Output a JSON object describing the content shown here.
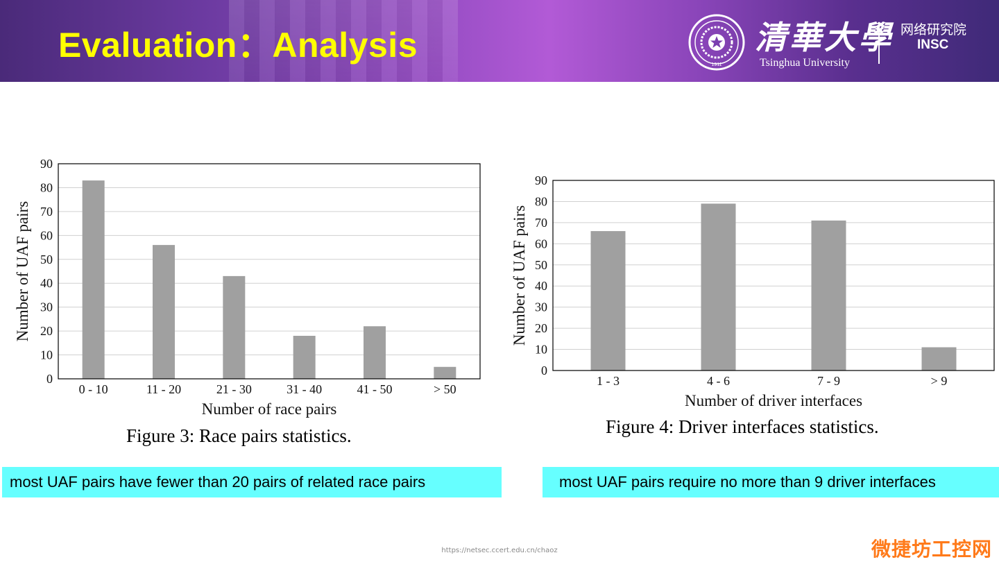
{
  "slide": {
    "title": "Evaluation：Analysis",
    "logo": {
      "university_cn": "清華大學",
      "university_en": "Tsinghua University",
      "department_cn": "网络研究院",
      "department_en": "INSC",
      "seal_text": "1911"
    },
    "footer_url": "https://netsec.ccert.edu.cn/chaoz",
    "watermark": "微捷坊工控网"
  },
  "colors": {
    "banner_accent": "#b25ad6",
    "title": "#ffff00",
    "bar": "#a0a0a0",
    "note_bg": "#66ffff"
  },
  "left": {
    "caption": "Figure 3: Race pairs statistics.",
    "note": "most UAF pairs have fewer than 20 pairs of related race pairs"
  },
  "right": {
    "caption": "Figure 4: Driver interfaces statistics.",
    "note": "most UAF pairs require no more than 9 driver interfaces"
  },
  "chart_data": [
    {
      "type": "bar",
      "title": "Figure 3: Race pairs statistics.",
      "xlabel": "Number of race pairs",
      "ylabel": "Number of UAF pairs",
      "categories": [
        "0 - 10",
        "11 - 20",
        "21 - 30",
        "31 - 40",
        "41 - 50",
        "> 50"
      ],
      "values": [
        83,
        56,
        43,
        18,
        22,
        5
      ],
      "ylim": [
        0,
        90
      ],
      "yticks": [
        0,
        10,
        20,
        30,
        40,
        50,
        60,
        70,
        80,
        90
      ],
      "grid": "horizontal",
      "legend": "none"
    },
    {
      "type": "bar",
      "title": "Figure 4: Driver interfaces statistics.",
      "xlabel": "Number of driver interfaces",
      "ylabel": "Number of UAF pairs",
      "categories": [
        "1 - 3",
        "4 - 6",
        "7 - 9",
        "> 9"
      ],
      "values": [
        66,
        79,
        71,
        11
      ],
      "ylim": [
        0,
        90
      ],
      "yticks": [
        0,
        10,
        20,
        30,
        40,
        50,
        60,
        70,
        80,
        90
      ],
      "grid": "horizontal",
      "legend": "none"
    }
  ]
}
